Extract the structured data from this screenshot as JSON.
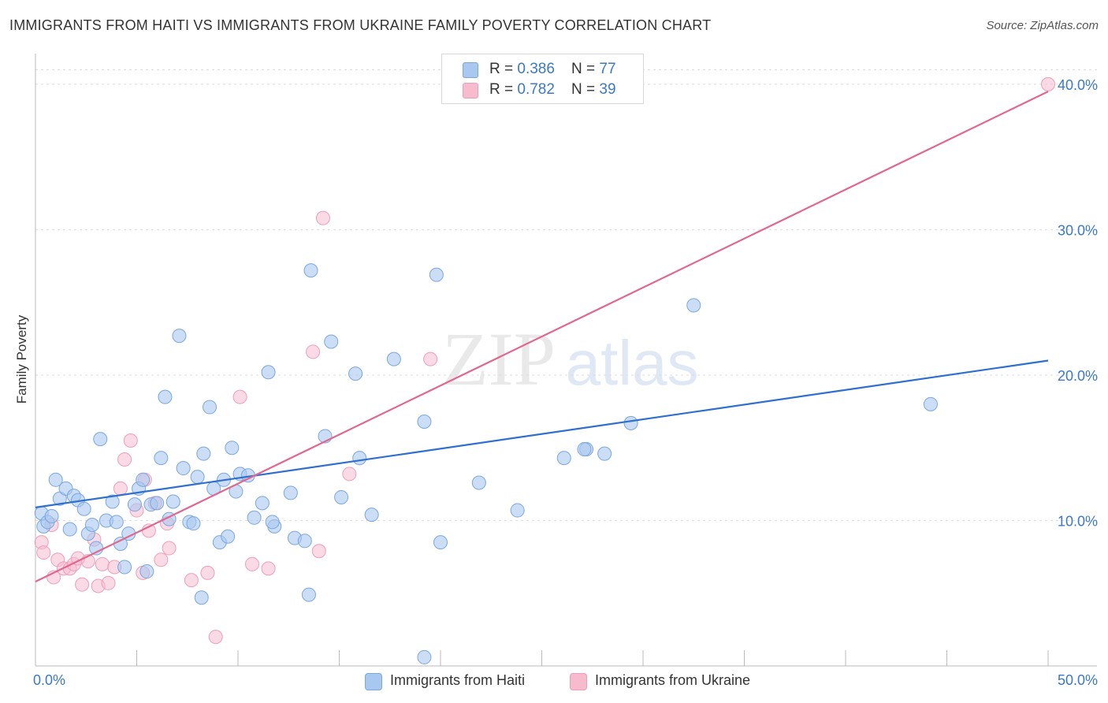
{
  "title": "IMMIGRANTS FROM HAITI VS IMMIGRANTS FROM UKRAINE FAMILY POVERTY CORRELATION CHART",
  "source": "Source: ZipAtlas.com",
  "watermark": {
    "zip": "ZIP",
    "atlas": "atlas"
  },
  "legend_top": {
    "rows": [
      {
        "r_label": "R = ",
        "r_value": "0.386",
        "n_label": "N = ",
        "n_value": "77"
      },
      {
        "r_label": "R = ",
        "r_value": "0.782",
        "n_label": "N = ",
        "n_value": "39"
      }
    ]
  },
  "colors": {
    "haiti_fill": "#a9c8f0",
    "haiti_stroke": "#7aa7e0",
    "haiti_line": "#2f6fd0",
    "ukraine_fill": "#f6bccd",
    "ukraine_stroke": "#ee9fb6",
    "ukraine_line": "#e06890",
    "axis_text": "#3b78c9",
    "grid": "#dddddd"
  },
  "chart_data": {
    "type": "scatter",
    "xlabel": "",
    "ylabel": "Family Poverty",
    "xlim": [
      0,
      50
    ],
    "ylim": [
      0,
      42
    ],
    "x_tick_labels": {
      "min": "0.0%",
      "max": "50.0%"
    },
    "y_ticks": [
      10,
      20,
      30,
      40
    ],
    "y_tick_labels": [
      "10.0%",
      "20.0%",
      "30.0%",
      "40.0%"
    ],
    "series": [
      {
        "name": "Immigrants from Haiti",
        "trend": {
          "x0": 0,
          "y0": 10.9,
          "x1": 50,
          "y1": 21.0
        },
        "points": [
          [
            0.3,
            10.5
          ],
          [
            0.4,
            9.6
          ],
          [
            0.6,
            9.9
          ],
          [
            0.8,
            10.3
          ],
          [
            1.0,
            12.8
          ],
          [
            1.2,
            11.5
          ],
          [
            1.5,
            12.2
          ],
          [
            1.7,
            9.4
          ],
          [
            1.9,
            11.7
          ],
          [
            2.1,
            11.4
          ],
          [
            2.4,
            10.8
          ],
          [
            2.6,
            9.1
          ],
          [
            2.8,
            9.7
          ],
          [
            3.0,
            8.1
          ],
          [
            3.2,
            15.6
          ],
          [
            3.5,
            10.0
          ],
          [
            3.8,
            11.3
          ],
          [
            4.0,
            9.9
          ],
          [
            4.2,
            8.4
          ],
          [
            4.4,
            6.8
          ],
          [
            4.6,
            9.1
          ],
          [
            4.9,
            11.1
          ],
          [
            5.1,
            12.2
          ],
          [
            5.3,
            12.8
          ],
          [
            5.5,
            6.5
          ],
          [
            5.7,
            11.1
          ],
          [
            6.0,
            11.2
          ],
          [
            6.2,
            14.3
          ],
          [
            6.4,
            18.5
          ],
          [
            6.6,
            10.1
          ],
          [
            6.8,
            11.3
          ],
          [
            7.1,
            22.7
          ],
          [
            7.3,
            13.6
          ],
          [
            7.6,
            9.9
          ],
          [
            7.8,
            9.8
          ],
          [
            8.0,
            13.0
          ],
          [
            8.2,
            4.7
          ],
          [
            8.3,
            14.6
          ],
          [
            8.6,
            17.8
          ],
          [
            8.8,
            12.2
          ],
          [
            9.1,
            8.5
          ],
          [
            9.3,
            12.8
          ],
          [
            9.5,
            8.9
          ],
          [
            9.7,
            15.0
          ],
          [
            9.9,
            12.0
          ],
          [
            10.1,
            13.2
          ],
          [
            10.5,
            13.1
          ],
          [
            10.8,
            10.2
          ],
          [
            11.2,
            11.2
          ],
          [
            11.5,
            20.2
          ],
          [
            11.8,
            9.6
          ],
          [
            11.7,
            9.9
          ],
          [
            12.6,
            11.9
          ],
          [
            12.8,
            8.8
          ],
          [
            13.3,
            8.6
          ],
          [
            13.6,
            27.2
          ],
          [
            13.5,
            4.9
          ],
          [
            14.3,
            15.8
          ],
          [
            14.6,
            22.3
          ],
          [
            15.1,
            11.6
          ],
          [
            15.8,
            20.1
          ],
          [
            16.0,
            14.3
          ],
          [
            16.6,
            10.4
          ],
          [
            17.7,
            21.1
          ],
          [
            19.2,
            0.6
          ],
          [
            19.2,
            16.8
          ],
          [
            19.8,
            26.9
          ],
          [
            20.0,
            8.5
          ],
          [
            21.9,
            12.6
          ],
          [
            23.8,
            10.7
          ],
          [
            26.1,
            14.3
          ],
          [
            27.2,
            14.9
          ],
          [
            27.1,
            14.9
          ],
          [
            28.1,
            14.6
          ],
          [
            29.4,
            16.7
          ],
          [
            32.5,
            24.8
          ],
          [
            44.2,
            18.0
          ]
        ]
      },
      {
        "name": "Immigrants from Ukraine",
        "trend": {
          "x0": 0,
          "y0": 5.8,
          "x1": 50,
          "y1": 39.5
        },
        "points": [
          [
            0.3,
            8.5
          ],
          [
            0.4,
            7.8
          ],
          [
            0.8,
            9.7
          ],
          [
            0.9,
            6.1
          ],
          [
            1.1,
            7.3
          ],
          [
            1.4,
            6.7
          ],
          [
            1.7,
            6.7
          ],
          [
            1.9,
            7.0
          ],
          [
            2.1,
            7.4
          ],
          [
            2.3,
            5.6
          ],
          [
            2.6,
            7.2
          ],
          [
            2.9,
            8.7
          ],
          [
            3.1,
            5.5
          ],
          [
            3.3,
            7.0
          ],
          [
            3.6,
            5.7
          ],
          [
            3.9,
            6.8
          ],
          [
            4.2,
            12.2
          ],
          [
            4.4,
            14.2
          ],
          [
            4.7,
            15.5
          ],
          [
            5.0,
            10.7
          ],
          [
            5.3,
            6.4
          ],
          [
            5.4,
            12.8
          ],
          [
            5.6,
            9.3
          ],
          [
            5.9,
            11.2
          ],
          [
            6.2,
            7.3
          ],
          [
            6.5,
            9.8
          ],
          [
            6.6,
            8.1
          ],
          [
            7.7,
            5.9
          ],
          [
            8.5,
            6.4
          ],
          [
            8.9,
            2.0
          ],
          [
            10.1,
            18.5
          ],
          [
            10.7,
            7.0
          ],
          [
            11.5,
            6.7
          ],
          [
            13.7,
            21.6
          ],
          [
            14.0,
            7.9
          ],
          [
            14.2,
            30.8
          ],
          [
            15.5,
            13.2
          ],
          [
            19.5,
            21.1
          ],
          [
            50.0,
            40.0
          ]
        ]
      }
    ]
  }
}
